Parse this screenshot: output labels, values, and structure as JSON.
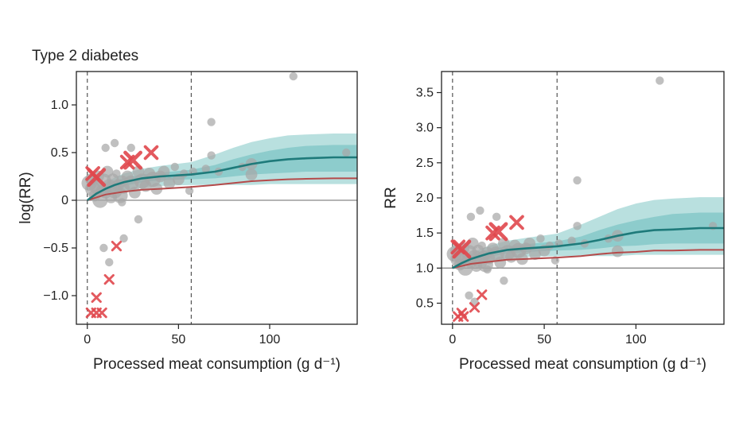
{
  "chart_data": [
    {
      "type": "scatter",
      "title": "Type 2 diabetes",
      "xlabel": "Processed meat consumption (g d⁻¹)",
      "ylabel": "log(RR)",
      "xlim": [
        -6,
        148
      ],
      "ylim": [
        -1.3,
        1.35
      ],
      "xticks": [
        0,
        50,
        100
      ],
      "yticks": [
        -1.0,
        -0.5,
        0,
        0.5,
        1.0
      ],
      "ytick_labels": [
        "−1.0",
        "−0.5",
        "0",
        "0.5",
        "1.0"
      ],
      "reference_line": 0,
      "exposure_range_lines": [
        0,
        57
      ],
      "estimate_curve": {
        "x": [
          0,
          5,
          10,
          15,
          20,
          30,
          40,
          57,
          70,
          80,
          90,
          100,
          110,
          120,
          135,
          148
        ],
        "y": [
          0.0,
          0.07,
          0.12,
          0.16,
          0.19,
          0.23,
          0.25,
          0.27,
          0.3,
          0.34,
          0.38,
          0.41,
          0.43,
          0.44,
          0.45,
          0.45
        ]
      },
      "inner_band": {
        "lower": [
          0.0,
          0.05,
          0.09,
          0.12,
          0.15,
          0.19,
          0.21,
          0.22,
          0.23,
          0.25,
          0.27,
          0.28,
          0.29,
          0.3,
          0.3,
          0.3
        ],
        "upper": [
          0.0,
          0.09,
          0.15,
          0.2,
          0.23,
          0.27,
          0.29,
          0.32,
          0.37,
          0.43,
          0.48,
          0.52,
          0.55,
          0.57,
          0.58,
          0.58
        ]
      },
      "outer_band": {
        "lower": [
          0.0,
          0.03,
          0.06,
          0.08,
          0.1,
          0.13,
          0.15,
          0.16,
          0.16,
          0.16,
          0.16,
          0.17,
          0.17,
          0.17,
          0.17,
          0.17
        ],
        "upper": [
          0.0,
          0.11,
          0.18,
          0.24,
          0.28,
          0.33,
          0.36,
          0.4,
          0.48,
          0.55,
          0.61,
          0.65,
          0.68,
          0.69,
          0.7,
          0.7
        ]
      },
      "burden_of_proof_curve": {
        "x": [
          0,
          10,
          20,
          30,
          40,
          57,
          70,
          80,
          90,
          100,
          110,
          120,
          135,
          148
        ],
        "y": [
          0.0,
          0.06,
          0.09,
          0.11,
          0.12,
          0.14,
          0.16,
          0.18,
          0.2,
          0.21,
          0.22,
          0.225,
          0.23,
          0.23
        ]
      },
      "observations": [
        {
          "x": 1,
          "y": 0.18,
          "w": 3
        },
        {
          "x": 2,
          "y": 0.22,
          "w": 2
        },
        {
          "x": 3,
          "y": 0.12,
          "w": 3
        },
        {
          "x": 4,
          "y": 0.05,
          "w": 2
        },
        {
          "x": 5,
          "y": 0.15,
          "w": 3
        },
        {
          "x": 6,
          "y": 0.25,
          "w": 2
        },
        {
          "x": 7,
          "y": 0.0,
          "w": 3
        },
        {
          "x": 8,
          "y": 0.1,
          "w": 2
        },
        {
          "x": 9,
          "y": 0.2,
          "w": 3
        },
        {
          "x": 10,
          "y": 0.08,
          "w": 2
        },
        {
          "x": 11,
          "y": 0.3,
          "w": 2
        },
        {
          "x": 12,
          "y": 0.14,
          "w": 3
        },
        {
          "x": 13,
          "y": 0.03,
          "w": 2
        },
        {
          "x": 14,
          "y": 0.22,
          "w": 2
        },
        {
          "x": 15,
          "y": 0.1,
          "w": 3
        },
        {
          "x": 16,
          "y": 0.28,
          "w": 1
        },
        {
          "x": 17,
          "y": 0.16,
          "w": 2
        },
        {
          "x": 18,
          "y": 0.05,
          "w": 3
        },
        {
          "x": 19,
          "y": 0.2,
          "w": 2
        },
        {
          "x": 20,
          "y": 0.13,
          "w": 2
        },
        {
          "x": 22,
          "y": 0.25,
          "w": 2
        },
        {
          "x": 24,
          "y": 0.18,
          "w": 3
        },
        {
          "x": 26,
          "y": 0.08,
          "w": 2
        },
        {
          "x": 28,
          "y": 0.3,
          "w": 2
        },
        {
          "x": 30,
          "y": 0.2,
          "w": 3
        },
        {
          "x": 32,
          "y": 0.15,
          "w": 2
        },
        {
          "x": 34,
          "y": 0.28,
          "w": 2
        },
        {
          "x": 36,
          "y": 0.22,
          "w": 3
        },
        {
          "x": 38,
          "y": 0.12,
          "w": 2
        },
        {
          "x": 40,
          "y": 0.25,
          "w": 2
        },
        {
          "x": 42,
          "y": 0.3,
          "w": 2
        },
        {
          "x": 45,
          "y": 0.18,
          "w": 2
        },
        {
          "x": 48,
          "y": 0.35,
          "w": 1
        },
        {
          "x": 50,
          "y": 0.22,
          "w": 2
        },
        {
          "x": 53,
          "y": 0.28,
          "w": 1
        },
        {
          "x": 56,
          "y": 0.1,
          "w": 1
        },
        {
          "x": 58,
          "y": 0.3,
          "w": 1
        },
        {
          "x": 10,
          "y": 0.55,
          "w": 1
        },
        {
          "x": 15,
          "y": 0.6,
          "w": 1
        },
        {
          "x": 24,
          "y": 0.55,
          "w": 1
        },
        {
          "x": 19,
          "y": -0.02,
          "w": 1
        },
        {
          "x": 28,
          "y": -0.2,
          "w": 1
        },
        {
          "x": 9,
          "y": -0.5,
          "w": 1
        },
        {
          "x": 12,
          "y": -0.65,
          "w": 1
        },
        {
          "x": 20,
          "y": -0.4,
          "w": 1
        },
        {
          "x": 68,
          "y": 0.82,
          "w": 1
        },
        {
          "x": 68,
          "y": 0.47,
          "w": 1
        },
        {
          "x": 65,
          "y": 0.33,
          "w": 1
        },
        {
          "x": 72,
          "y": 0.3,
          "w": 1
        },
        {
          "x": 85,
          "y": 0.35,
          "w": 1
        },
        {
          "x": 90,
          "y": 0.38,
          "w": 2
        },
        {
          "x": 90,
          "y": 0.27,
          "w": 2
        },
        {
          "x": 113,
          "y": 1.3,
          "w": 1
        },
        {
          "x": 142,
          "y": 0.5,
          "w": 1
        }
      ],
      "excluded_outliers": [
        {
          "x": 3,
          "y": 0.28,
          "w": 2
        },
        {
          "x": 5,
          "y": 0.24,
          "w": 3
        },
        {
          "x": 22,
          "y": 0.4,
          "w": 2
        },
        {
          "x": 25,
          "y": 0.42,
          "w": 3
        },
        {
          "x": 35,
          "y": 0.5,
          "w": 2
        },
        {
          "x": 16,
          "y": -0.48,
          "w": 1
        },
        {
          "x": 12,
          "y": -0.83,
          "w": 1
        },
        {
          "x": 5,
          "y": -1.02,
          "w": 1
        },
        {
          "x": 2,
          "y": -1.18,
          "w": 1
        },
        {
          "x": 5,
          "y": -1.18,
          "w": 1
        },
        {
          "x": 8,
          "y": -1.18,
          "w": 1
        }
      ]
    },
    {
      "type": "scatter",
      "title": "",
      "xlabel": "Processed meat consumption (g d⁻¹)",
      "ylabel": "RR",
      "xlim": [
        -6,
        148
      ],
      "ylim": [
        0.2,
        3.8
      ],
      "xticks": [
        0,
        50,
        100
      ],
      "yticks": [
        0.5,
        1.0,
        1.5,
        2.0,
        2.5,
        3.0,
        3.5
      ],
      "ytick_labels": [
        "0.5",
        "1.0",
        "1.5",
        "2.0",
        "2.5",
        "3.0",
        "3.5"
      ],
      "reference_line": 1,
      "exposure_range_lines": [
        0,
        57
      ],
      "estimate_curve": {
        "x": [
          0,
          5,
          10,
          15,
          20,
          30,
          40,
          57,
          70,
          80,
          90,
          100,
          110,
          120,
          135,
          148
        ],
        "y": [
          1.0,
          1.07,
          1.13,
          1.17,
          1.21,
          1.26,
          1.28,
          1.31,
          1.35,
          1.4,
          1.46,
          1.51,
          1.54,
          1.55,
          1.57,
          1.57
        ]
      },
      "inner_band": {
        "lower": [
          1.0,
          1.05,
          1.09,
          1.13,
          1.16,
          1.21,
          1.23,
          1.25,
          1.26,
          1.28,
          1.31,
          1.32,
          1.34,
          1.35,
          1.35,
          1.35
        ],
        "upper": [
          1.0,
          1.09,
          1.16,
          1.22,
          1.26,
          1.31,
          1.34,
          1.38,
          1.45,
          1.54,
          1.62,
          1.68,
          1.73,
          1.77,
          1.79,
          1.79
        ]
      },
      "outer_band": {
        "lower": [
          1.0,
          1.03,
          1.06,
          1.08,
          1.11,
          1.14,
          1.16,
          1.17,
          1.17,
          1.17,
          1.17,
          1.19,
          1.19,
          1.19,
          1.19,
          1.19
        ],
        "upper": [
          1.0,
          1.12,
          1.2,
          1.27,
          1.32,
          1.39,
          1.43,
          1.49,
          1.62,
          1.73,
          1.84,
          1.92,
          1.97,
          1.99,
          2.01,
          2.01
        ]
      },
      "burden_of_proof_curve": {
        "x": [
          0,
          10,
          20,
          30,
          40,
          57,
          70,
          80,
          90,
          100,
          110,
          120,
          135,
          148
        ],
        "y": [
          1.0,
          1.06,
          1.09,
          1.12,
          1.13,
          1.15,
          1.17,
          1.2,
          1.22,
          1.23,
          1.25,
          1.25,
          1.26,
          1.26
        ]
      },
      "observations": [
        {
          "x": 1,
          "y": 1.2,
          "w": 3
        },
        {
          "x": 2,
          "y": 1.25,
          "w": 2
        },
        {
          "x": 3,
          "y": 1.13,
          "w": 3
        },
        {
          "x": 4,
          "y": 1.05,
          "w": 2
        },
        {
          "x": 5,
          "y": 1.16,
          "w": 3
        },
        {
          "x": 6,
          "y": 1.28,
          "w": 2
        },
        {
          "x": 7,
          "y": 1.0,
          "w": 3
        },
        {
          "x": 8,
          "y": 1.11,
          "w": 2
        },
        {
          "x": 9,
          "y": 1.22,
          "w": 3
        },
        {
          "x": 10,
          "y": 1.08,
          "w": 2
        },
        {
          "x": 11,
          "y": 1.35,
          "w": 2
        },
        {
          "x": 12,
          "y": 1.15,
          "w": 3
        },
        {
          "x": 13,
          "y": 1.03,
          "w": 2
        },
        {
          "x": 14,
          "y": 1.25,
          "w": 2
        },
        {
          "x": 15,
          "y": 1.1,
          "w": 3
        },
        {
          "x": 16,
          "y": 1.32,
          "w": 1
        },
        {
          "x": 17,
          "y": 1.17,
          "w": 2
        },
        {
          "x": 18,
          "y": 1.05,
          "w": 3
        },
        {
          "x": 19,
          "y": 1.22,
          "w": 2
        },
        {
          "x": 20,
          "y": 1.14,
          "w": 2
        },
        {
          "x": 22,
          "y": 1.28,
          "w": 2
        },
        {
          "x": 24,
          "y": 1.2,
          "w": 3
        },
        {
          "x": 26,
          "y": 1.08,
          "w": 2
        },
        {
          "x": 28,
          "y": 1.35,
          "w": 2
        },
        {
          "x": 30,
          "y": 1.22,
          "w": 3
        },
        {
          "x": 32,
          "y": 1.16,
          "w": 2
        },
        {
          "x": 34,
          "y": 1.32,
          "w": 2
        },
        {
          "x": 36,
          "y": 1.25,
          "w": 3
        },
        {
          "x": 38,
          "y": 1.13,
          "w": 2
        },
        {
          "x": 40,
          "y": 1.28,
          "w": 2
        },
        {
          "x": 42,
          "y": 1.35,
          "w": 2
        },
        {
          "x": 45,
          "y": 1.2,
          "w": 2
        },
        {
          "x": 48,
          "y": 1.42,
          "w": 1
        },
        {
          "x": 50,
          "y": 1.25,
          "w": 2
        },
        {
          "x": 53,
          "y": 1.32,
          "w": 1
        },
        {
          "x": 56,
          "y": 1.11,
          "w": 1
        },
        {
          "x": 58,
          "y": 1.35,
          "w": 1
        },
        {
          "x": 10,
          "y": 1.73,
          "w": 1
        },
        {
          "x": 15,
          "y": 1.82,
          "w": 1
        },
        {
          "x": 24,
          "y": 1.73,
          "w": 1
        },
        {
          "x": 19,
          "y": 0.98,
          "w": 1
        },
        {
          "x": 28,
          "y": 0.82,
          "w": 1
        },
        {
          "x": 9,
          "y": 0.61,
          "w": 1
        },
        {
          "x": 12,
          "y": 0.52,
          "w": 1
        },
        {
          "x": 68,
          "y": 2.25,
          "w": 1
        },
        {
          "x": 68,
          "y": 1.6,
          "w": 1
        },
        {
          "x": 65,
          "y": 1.39,
          "w": 1
        },
        {
          "x": 72,
          "y": 1.35,
          "w": 1
        },
        {
          "x": 85,
          "y": 1.42,
          "w": 1
        },
        {
          "x": 90,
          "y": 1.46,
          "w": 2
        },
        {
          "x": 90,
          "y": 1.24,
          "w": 2
        },
        {
          "x": 113,
          "y": 3.67,
          "w": 1
        },
        {
          "x": 142,
          "y": 1.6,
          "w": 1
        }
      ],
      "excluded_outliers": [
        {
          "x": 3,
          "y": 1.3,
          "w": 2
        },
        {
          "x": 5,
          "y": 1.27,
          "w": 3
        },
        {
          "x": 22,
          "y": 1.5,
          "w": 2
        },
        {
          "x": 25,
          "y": 1.52,
          "w": 3
        },
        {
          "x": 35,
          "y": 1.65,
          "w": 2
        },
        {
          "x": 16,
          "y": 0.62,
          "w": 1
        },
        {
          "x": 12,
          "y": 0.44,
          "w": 1
        },
        {
          "x": 5,
          "y": 0.36,
          "w": 1
        },
        {
          "x": 3,
          "y": 0.31,
          "w": 1
        },
        {
          "x": 6,
          "y": 0.31,
          "w": 1
        }
      ]
    }
  ],
  "colors": {
    "observation": "#a8a8a8",
    "outlier": "#e0474c",
    "estimate": "#1e7a7a",
    "inner_band": "#7fc6c6",
    "outer_band": "#b9e0df",
    "burden_of_proof": "#b54a4a",
    "reference_line": "#888888",
    "frame": "#222222"
  }
}
